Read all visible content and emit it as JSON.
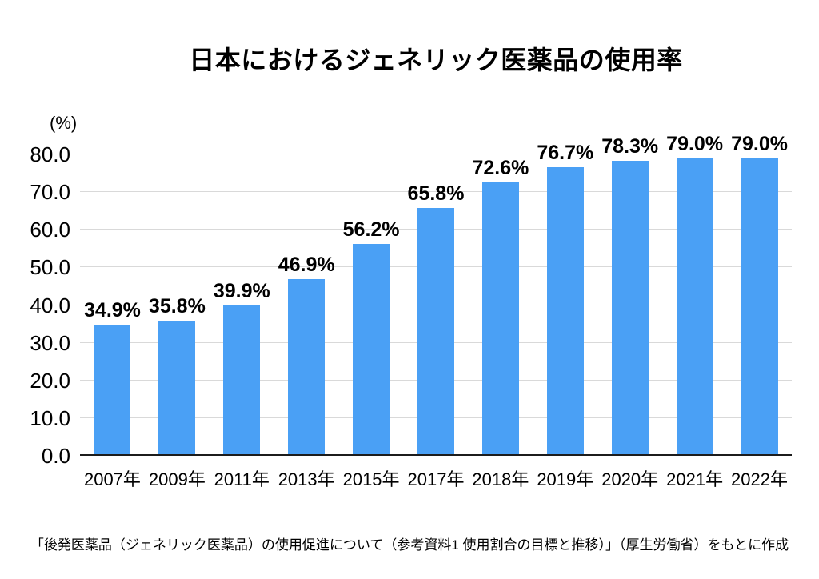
{
  "page": {
    "background_color": "#ffffff",
    "text_color": "#000000"
  },
  "chart_data": {
    "type": "bar",
    "title": "日本におけるジェネリック医薬品の使用率",
    "unit_label": "(%)",
    "categories": [
      "2007年",
      "2009年",
      "2011年",
      "2013年",
      "2015年",
      "2017年",
      "2018年",
      "2019年",
      "2020年",
      "2021年",
      "2022年"
    ],
    "values": [
      34.9,
      35.8,
      39.9,
      46.9,
      56.2,
      65.8,
      72.6,
      76.7,
      78.3,
      79.0,
      79.0
    ],
    "value_labels": [
      "34.9%",
      "35.8%",
      "39.9%",
      "46.9%",
      "56.2%",
      "65.8%",
      "72.6%",
      "76.7%",
      "78.3%",
      "79.0%",
      "79.0%"
    ],
    "xlabel": "",
    "ylabel": "(%)",
    "ylim": [
      0,
      80
    ],
    "yticks": [
      0,
      10,
      20,
      30,
      40,
      50,
      60,
      70,
      80
    ],
    "ytick_labels": [
      "0.0",
      "10.0",
      "20.0",
      "30.0",
      "40.0",
      "50.0",
      "60.0",
      "70.0",
      "80.0"
    ],
    "grid": true,
    "legend_position": "none",
    "bar_color": "#4aa0f5",
    "gridline_color": "#d9d9d9",
    "axis_line_color": "#1c1c1c",
    "source_note": "「後発医薬品（ジェネリック医薬品）の使用促進について（参考資料1 使用割合の目標と推移）」（厚生労働省）をもとに作成"
  }
}
